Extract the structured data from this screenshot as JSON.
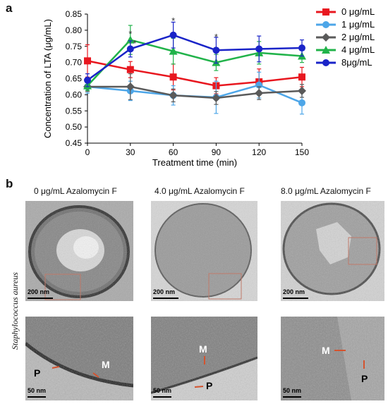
{
  "panel_a_letter": "a",
  "panel_b_letter": "b",
  "colors": {
    "s0": "#e8171f",
    "s1": "#4da6e8",
    "s2": "#5a5a5a",
    "s4": "#21b34a",
    "s8": "#1a24c8"
  },
  "chart_data": {
    "type": "line",
    "xlabel": "Treatment time (min)",
    "ylabel": "Concentration of LTA (μg/mL)",
    "x": [
      0,
      30,
      60,
      90,
      120,
      150
    ],
    "xlim": [
      0,
      150
    ],
    "ylim": [
      0.45,
      0.85
    ],
    "x_ticks": [
      "0",
      "30",
      "60",
      "90",
      "120",
      "150"
    ],
    "y_ticks": [
      "0.45",
      "0.50",
      "0.55",
      "0.60",
      "0.65",
      "0.70",
      "0.75",
      "0.80",
      "0.85"
    ],
    "legend_position": "top-right",
    "series": [
      {
        "name": "0 μg/mL",
        "color": "#e8171f",
        "marker": "square",
        "values": [
          0.705,
          0.678,
          0.655,
          0.628,
          0.64,
          0.655
        ],
        "errors": [
          0.05,
          0.025,
          0.04,
          0.025,
          0.04,
          0.03
        ]
      },
      {
        "name": "1 μg/mL",
        "color": "#4da6e8",
        "marker": "circle",
        "values": [
          0.625,
          0.612,
          0.598,
          0.592,
          0.63,
          0.575
        ],
        "errors": [
          0.02,
          0.03,
          0.03,
          0.05,
          0.04,
          0.035
        ]
      },
      {
        "name": "2 μg/mL",
        "color": "#5a5a5a",
        "marker": "diamond",
        "values": [
          0.625,
          0.625,
          0.598,
          0.59,
          0.605,
          0.612
        ],
        "errors": [
          0.015,
          0.04,
          0.02,
          0.02,
          0.02,
          0.02
        ]
      },
      {
        "name": "4 μg/mL",
        "color": "#21b34a",
        "marker": "triangle",
        "values": [
          0.628,
          0.77,
          0.735,
          0.7,
          0.73,
          0.72
        ],
        "errors": [
          0.015,
          0.045,
          0.04,
          0.025,
          0.035,
          0.02
        ]
      },
      {
        "name": "8μg/mL",
        "color": "#1a24c8",
        "marker": "circle",
        "values": [
          0.645,
          0.742,
          0.785,
          0.738,
          0.742,
          0.745
        ],
        "errors": [
          0.02,
          0.025,
          0.04,
          0.04,
          0.04,
          0.025
        ]
      }
    ],
    "annotations": [
      {
        "text": "*",
        "x": 30,
        "y": 0.79
      },
      {
        "text": "*",
        "x": 33,
        "y": 0.76
      },
      {
        "text": "*",
        "x": 60,
        "y": 0.83
      },
      {
        "text": "*",
        "x": 90,
        "y": 0.78
      }
    ]
  },
  "panel_b": {
    "row_label": "Staphylococcus aureus",
    "columns": [
      {
        "title": "0 μg/mL Azalomycin F",
        "scale_top": "200 nm",
        "scale_bottom": "50 nm"
      },
      {
        "title": "4.0 μg/mL Azalomycin F",
        "scale_top": "200 nm",
        "scale_bottom": "50 nm"
      },
      {
        "title": "8.0 μg/mL Azalomycin F",
        "scale_top": "200 nm",
        "scale_bottom": "50 nm"
      }
    ],
    "mark_m": "M",
    "mark_p": "P"
  }
}
